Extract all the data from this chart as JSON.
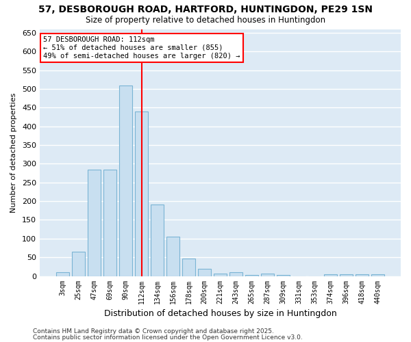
{
  "title": "57, DESBOROUGH ROAD, HARTFORD, HUNTINGDON, PE29 1SN",
  "subtitle": "Size of property relative to detached houses in Huntingdon",
  "xlabel": "Distribution of detached houses by size in Huntingdon",
  "ylabel": "Number of detached properties",
  "bar_color": "#c8dff0",
  "bar_edge_color": "#7ab4d4",
  "bg_color": "#ddeaf5",
  "grid_color": "#ffffff",
  "fig_color": "#ffffff",
  "red_line_x": 112,
  "annotation_text": "57 DESBOROUGH ROAD: 112sqm\n← 51% of detached houses are smaller (855)\n49% of semi-detached houses are larger (820) →",
  "categories": [
    "3sqm",
    "25sqm",
    "47sqm",
    "69sqm",
    "90sqm",
    "112sqm",
    "134sqm",
    "156sqm",
    "178sqm",
    "200sqm",
    "221sqm",
    "243sqm",
    "265sqm",
    "287sqm",
    "309sqm",
    "331sqm",
    "353sqm",
    "374sqm",
    "396sqm",
    "418sqm",
    "440sqm"
  ],
  "values": [
    10,
    65,
    285,
    285,
    510,
    440,
    192,
    105,
    46,
    20,
    7,
    11,
    3,
    7,
    3,
    0,
    0,
    5,
    5,
    5,
    5
  ],
  "ylim": [
    0,
    660
  ],
  "yticks": [
    0,
    50,
    100,
    150,
    200,
    250,
    300,
    350,
    400,
    450,
    500,
    550,
    600,
    650
  ],
  "footer1": "Contains HM Land Registry data © Crown copyright and database right 2025.",
  "footer2": "Contains public sector information licensed under the Open Government Licence v3.0."
}
